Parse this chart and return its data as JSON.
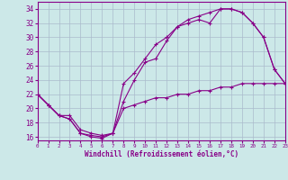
{
  "xlabel": "Windchill (Refroidissement éolien,°C)",
  "xlim": [
    0,
    23
  ],
  "ylim": [
    15.5,
    35
  ],
  "yticks": [
    16,
    18,
    20,
    22,
    24,
    26,
    28,
    30,
    32,
    34
  ],
  "xticks": [
    0,
    1,
    2,
    3,
    4,
    5,
    6,
    7,
    8,
    9,
    10,
    11,
    12,
    13,
    14,
    15,
    16,
    17,
    18,
    19,
    20,
    21,
    22,
    23
  ],
  "bg_color": "#cce8e8",
  "grid_color": "#aabbcc",
  "line_color": "#880088",
  "line1_x": [
    0,
    1,
    2,
    3,
    4,
    5,
    6,
    7,
    8,
    9,
    10,
    11,
    12,
    13,
    14,
    15,
    16,
    17,
    18,
    19,
    20,
    21,
    22,
    23
  ],
  "line1_y": [
    22.0,
    20.5,
    19.0,
    18.5,
    16.5,
    16.0,
    15.8,
    16.5,
    21.0,
    24.0,
    26.5,
    27.0,
    29.5,
    31.5,
    32.0,
    32.5,
    32.0,
    34.0,
    34.0,
    33.5,
    32.0,
    30.0,
    25.5,
    23.5
  ],
  "line2_x": [
    0,
    1,
    2,
    3,
    4,
    5,
    6,
    7,
    8,
    9,
    10,
    11,
    12,
    13,
    14,
    15,
    16,
    17,
    18,
    19,
    20,
    21,
    22,
    23
  ],
  "line2_y": [
    22.0,
    20.5,
    19.0,
    18.5,
    16.5,
    16.2,
    16.0,
    16.5,
    23.5,
    25.0,
    27.0,
    29.0,
    30.0,
    31.5,
    32.5,
    33.0,
    33.5,
    34.0,
    34.0,
    33.5,
    32.0,
    30.0,
    25.5,
    23.5
  ],
  "line3_x": [
    0,
    1,
    2,
    3,
    4,
    5,
    6,
    7,
    8,
    9,
    10,
    11,
    12,
    13,
    14,
    15,
    16,
    17,
    18,
    19,
    20,
    21,
    22,
    23
  ],
  "line3_y": [
    22.0,
    20.5,
    19.0,
    19.0,
    17.0,
    16.5,
    16.2,
    16.5,
    20.0,
    20.5,
    21.0,
    21.5,
    21.5,
    22.0,
    22.0,
    22.5,
    22.5,
    23.0,
    23.0,
    23.5,
    23.5,
    23.5,
    23.5,
    23.5
  ]
}
